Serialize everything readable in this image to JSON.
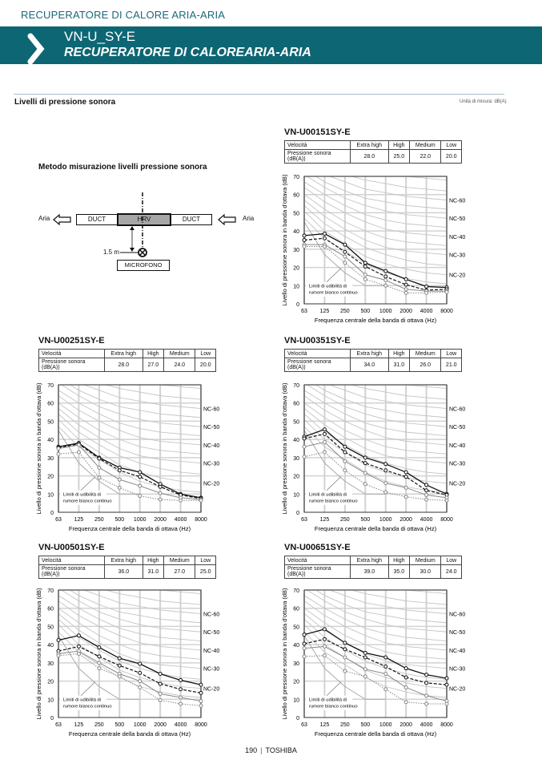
{
  "header": {
    "category": "RECUPERATORE DI CALORE ARIA-ARIA",
    "model": "VN-U_SY-E",
    "subtitle": "RECUPERATORE DI CALOREARIA-ARIA",
    "accent": "#0d6674"
  },
  "section": {
    "title": "Livelli di pressione sonora",
    "unit": "Unità di misura: dB(A)"
  },
  "diagram": {
    "title": "Metodo misurazione livelli pressione sonora",
    "air_left": "Aria",
    "air_right": "Aria",
    "duct_left": "DUCT",
    "hrv": "HRV",
    "duct_right": "DUCT",
    "distance": "1.5 m",
    "microphone": "MICROFONO"
  },
  "table_headers": [
    "Velocità",
    "Extra high",
    "High",
    "Medium",
    "Low"
  ],
  "table_row_label": "Pressione sonora (dB(A))",
  "charts": [
    {
      "title": "VN-U00151SY-E",
      "values": [
        "28.0",
        "25.0",
        "22.0",
        "20.0"
      ]
    },
    {
      "title": "VN-U00251SY-E",
      "values": [
        "28.0",
        "27.0",
        "24.0",
        "20.0"
      ]
    },
    {
      "title": "VN-U00351SY-E",
      "values": [
        "34.0",
        "31.0",
        "26.0",
        "21.0"
      ]
    },
    {
      "title": "VN-U00501SY-E",
      "values": [
        "36.0",
        "31.0",
        "27.0",
        "25.0"
      ]
    },
    {
      "title": "VN-U00651SY-E",
      "values": [
        "39.0",
        "35.0",
        "30.0",
        "24.0"
      ]
    }
  ],
  "chart_common": {
    "type": "line",
    "categories": [
      "63",
      "125",
      "250",
      "500",
      "1000",
      "2000",
      "4000",
      "8000"
    ],
    "xlabel": "Frequenza centrale della banda di ottava (Hz)",
    "ylabel": "Livello di pressione sonora in banda d'ottava (dB)",
    "ylim": [
      0,
      70
    ],
    "yticks": [
      "0",
      "10",
      "20",
      "30",
      "40",
      "50",
      "60",
      "70"
    ],
    "grid": true,
    "annotation": "Limiti di udibilità di\nrumore bianco continuo",
    "annotation_lines": [
      "Limiti di udibilità di",
      "rumore bianco continuo"
    ],
    "nc_labels": [
      "NC-60",
      "NC-50",
      "NC-40",
      "NC-30",
      "NC-20"
    ],
    "nc_curves": [
      {
        "name": "NC-15",
        "values": [
          47,
          36,
          29,
          22,
          17,
          14,
          12,
          11
        ]
      },
      {
        "name": "NC-20",
        "values": [
          51,
          40,
          33,
          26,
          22,
          19,
          17,
          16
        ]
      },
      {
        "name": "NC-25",
        "values": [
          54,
          44,
          37,
          31,
          27,
          24,
          22,
          21
        ]
      },
      {
        "name": "NC-30",
        "values": [
          57,
          48,
          41,
          35,
          31,
          29,
          28,
          27
        ]
      },
      {
        "name": "NC-35",
        "values": [
          60,
          52,
          45,
          40,
          36,
          34,
          33,
          32
        ]
      },
      {
        "name": "NC-40",
        "values": [
          64,
          56,
          50,
          45,
          41,
          39,
          38,
          37
        ]
      },
      {
        "name": "NC-45",
        "values": [
          67,
          60,
          54,
          49,
          46,
          44,
          43,
          42
        ]
      },
      {
        "name": "NC-50",
        "values": [
          71,
          64,
          58,
          54,
          51,
          49,
          48,
          47
        ]
      },
      {
        "name": "NC-55",
        "values": [
          74,
          67,
          62,
          58,
          56,
          54,
          53,
          52
        ]
      },
      {
        "name": "NC-60",
        "values": [
          77,
          71,
          67,
          63,
          61,
          59,
          58,
          57
        ]
      },
      {
        "name": "NC-65",
        "values": [
          80,
          75,
          71,
          68,
          66,
          64,
          63,
          62
        ]
      },
      {
        "name": "NC-70",
        "values": [
          83,
          79,
          75,
          72,
          71,
          70,
          69,
          68
        ]
      }
    ],
    "hearing_threshold": [
      45,
      27,
      17,
      10,
      10,
      null,
      null,
      null
    ]
  },
  "chart_data": [
    {
      "type": "line",
      "title": "VN-U00151SY-E",
      "categories": [
        "63",
        "125",
        "250",
        "500",
        "1000",
        "2000",
        "4000",
        "8000"
      ],
      "ylim": [
        0,
        70
      ],
      "series": [
        {
          "name": "Extra high",
          "values": [
            37.5,
            38.5,
            32.5,
            22.5,
            18,
            13.5,
            9.5,
            9
          ]
        },
        {
          "name": "High",
          "values": [
            35,
            36,
            28.5,
            20.5,
            15,
            10.5,
            7.5,
            8
          ]
        },
        {
          "name": "Medium",
          "values": [
            32.5,
            32.5,
            26,
            16,
            13,
            8,
            7,
            7
          ]
        },
        {
          "name": "Low",
          "values": [
            31.5,
            31.5,
            22.5,
            13.5,
            10,
            6,
            6,
            6.5
          ]
        }
      ]
    },
    {
      "type": "line",
      "title": "VN-U00251SY-E",
      "categories": [
        "63",
        "125",
        "250",
        "500",
        "1000",
        "2000",
        "4000",
        "8000"
      ],
      "ylim": [
        0,
        70
      ],
      "series": [
        {
          "name": "Extra high",
          "values": [
            36,
            38,
            30,
            24.5,
            22,
            15.5,
            10,
            8
          ]
        },
        {
          "name": "High",
          "values": [
            35.5,
            37.5,
            29.5,
            23,
            19.5,
            14,
            9.5,
            7.5
          ]
        },
        {
          "name": "Medium",
          "values": [
            35,
            37,
            24.5,
            18,
            14.5,
            10.5,
            8,
            7
          ]
        },
        {
          "name": "Low",
          "values": [
            32,
            33,
            19,
            13.5,
            9,
            7,
            6.5,
            6.5
          ]
        }
      ]
    },
    {
      "type": "line",
      "title": "VN-U00351SY-E",
      "categories": [
        "63",
        "125",
        "250",
        "500",
        "1000",
        "2000",
        "4000",
        "8000"
      ],
      "ylim": [
        0,
        70
      ],
      "series": [
        {
          "name": "Extra high",
          "values": [
            41.5,
            45.5,
            36,
            30,
            26.5,
            22,
            15,
            10
          ]
        },
        {
          "name": "High",
          "values": [
            40.5,
            43,
            33,
            27,
            23,
            19.5,
            12,
            9.5
          ]
        },
        {
          "name": "Medium",
          "values": [
            36,
            38.5,
            28,
            21.5,
            16,
            13.5,
            9.5,
            8
          ]
        },
        {
          "name": "Low",
          "values": [
            30.5,
            33,
            23,
            15.5,
            11,
            8.5,
            7,
            6.5
          ]
        }
      ]
    },
    {
      "type": "line",
      "title": "VN-U00501SY-E",
      "categories": [
        "63",
        "125",
        "250",
        "500",
        "1000",
        "2000",
        "4000",
        "8000"
      ],
      "ylim": [
        0,
        70
      ],
      "series": [
        {
          "name": "Extra high",
          "values": [
            42.5,
            45,
            38.5,
            32.5,
            29.5,
            24,
            20.5,
            18
          ]
        },
        {
          "name": "High",
          "values": [
            36.5,
            39,
            33.5,
            28.5,
            24.5,
            18.5,
            15.5,
            13.5
          ]
        },
        {
          "name": "Medium",
          "values": [
            35,
            36.5,
            30,
            24,
            20,
            13,
            11,
            9
          ]
        },
        {
          "name": "Low",
          "values": [
            34,
            35,
            27,
            22.5,
            16.5,
            9.5,
            7.5,
            6.5
          ]
        }
      ]
    },
    {
      "type": "line",
      "title": "VN-U00651SY-E",
      "categories": [
        "63",
        "125",
        "250",
        "500",
        "1000",
        "2000",
        "4000",
        "8000"
      ],
      "ylim": [
        0,
        70
      ],
      "series": [
        {
          "name": "Extra high",
          "values": [
            45.5,
            48.5,
            41,
            35.5,
            33,
            27,
            23.5,
            21.5
          ]
        },
        {
          "name": "High",
          "values": [
            40.5,
            43,
            37.5,
            33,
            28,
            22,
            19,
            18
          ]
        },
        {
          "name": "Medium",
          "values": [
            38,
            39,
            33,
            26.5,
            24,
            16.5,
            12,
            9
          ]
        },
        {
          "name": "Low",
          "values": [
            33.5,
            34,
            25.5,
            22.5,
            15.5,
            8.5,
            7.5,
            7.5
          ]
        }
      ]
    }
  ],
  "footer": {
    "page": "190",
    "brand": "TOSHIBA"
  }
}
